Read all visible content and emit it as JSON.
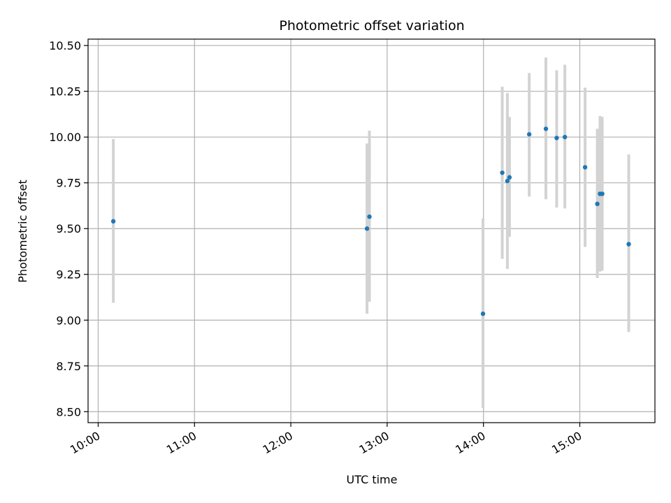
{
  "chart_data": {
    "type": "scatter",
    "title": "Photometric offset variation",
    "xlabel": "UTC time",
    "ylabel": "Photometric offset",
    "grid": true,
    "xlim": [
      9.895,
      15.78
    ],
    "ylim": [
      8.44,
      10.535
    ],
    "x_ticks": [
      {
        "value": 10,
        "label": "10:00"
      },
      {
        "value": 11,
        "label": "11:00"
      },
      {
        "value": 12,
        "label": "12:00"
      },
      {
        "value": 13,
        "label": "13:00"
      },
      {
        "value": 14,
        "label": "14:00"
      },
      {
        "value": 15,
        "label": "15:00"
      }
    ],
    "y_ticks": [
      {
        "value": 8.5,
        "label": "8.50"
      },
      {
        "value": 8.75,
        "label": "8.75"
      },
      {
        "value": 9.0,
        "label": "9.00"
      },
      {
        "value": 9.25,
        "label": "9.25"
      },
      {
        "value": 9.5,
        "label": "9.50"
      },
      {
        "value": 9.75,
        "label": "9.75"
      },
      {
        "value": 10.0,
        "label": "10.00"
      },
      {
        "value": 10.25,
        "label": "10.25"
      },
      {
        "value": 10.5,
        "label": "10.50"
      }
    ],
    "colors": {
      "point": "#1f77b4",
      "errorbar": "#d3d3d3",
      "grid": "#b0b0b0",
      "axes": "#000000"
    },
    "points": [
      {
        "x": 10.157,
        "y": 9.54,
        "ylow": 9.095,
        "yhigh": 9.99
      },
      {
        "x": 12.791,
        "y": 9.5,
        "ylow": 9.035,
        "yhigh": 9.965
      },
      {
        "x": 12.816,
        "y": 9.565,
        "ylow": 9.1,
        "yhigh": 10.035
      },
      {
        "x": 13.995,
        "y": 9.035,
        "ylow": 8.52,
        "yhigh": 9.555
      },
      {
        "x": 14.195,
        "y": 9.805,
        "ylow": 9.335,
        "yhigh": 10.275
      },
      {
        "x": 14.248,
        "y": 9.76,
        "ylow": 9.28,
        "yhigh": 10.24
      },
      {
        "x": 14.27,
        "y": 9.78,
        "ylow": 9.455,
        "yhigh": 10.11
      },
      {
        "x": 14.475,
        "y": 10.015,
        "ylow": 9.675,
        "yhigh": 10.35
      },
      {
        "x": 14.648,
        "y": 10.045,
        "ylow": 9.66,
        "yhigh": 10.435
      },
      {
        "x": 14.76,
        "y": 9.995,
        "ylow": 9.615,
        "yhigh": 10.365
      },
      {
        "x": 14.845,
        "y": 10.0,
        "ylow": 9.61,
        "yhigh": 10.395
      },
      {
        "x": 15.055,
        "y": 9.835,
        "ylow": 9.4,
        "yhigh": 10.27
      },
      {
        "x": 15.182,
        "y": 9.635,
        "ylow": 9.23,
        "yhigh": 10.045
      },
      {
        "x": 15.21,
        "y": 9.69,
        "ylow": 9.265,
        "yhigh": 10.115
      },
      {
        "x": 15.233,
        "y": 9.69,
        "ylow": 9.27,
        "yhigh": 10.11
      },
      {
        "x": 15.508,
        "y": 9.415,
        "ylow": 8.935,
        "yhigh": 9.905
      }
    ]
  }
}
